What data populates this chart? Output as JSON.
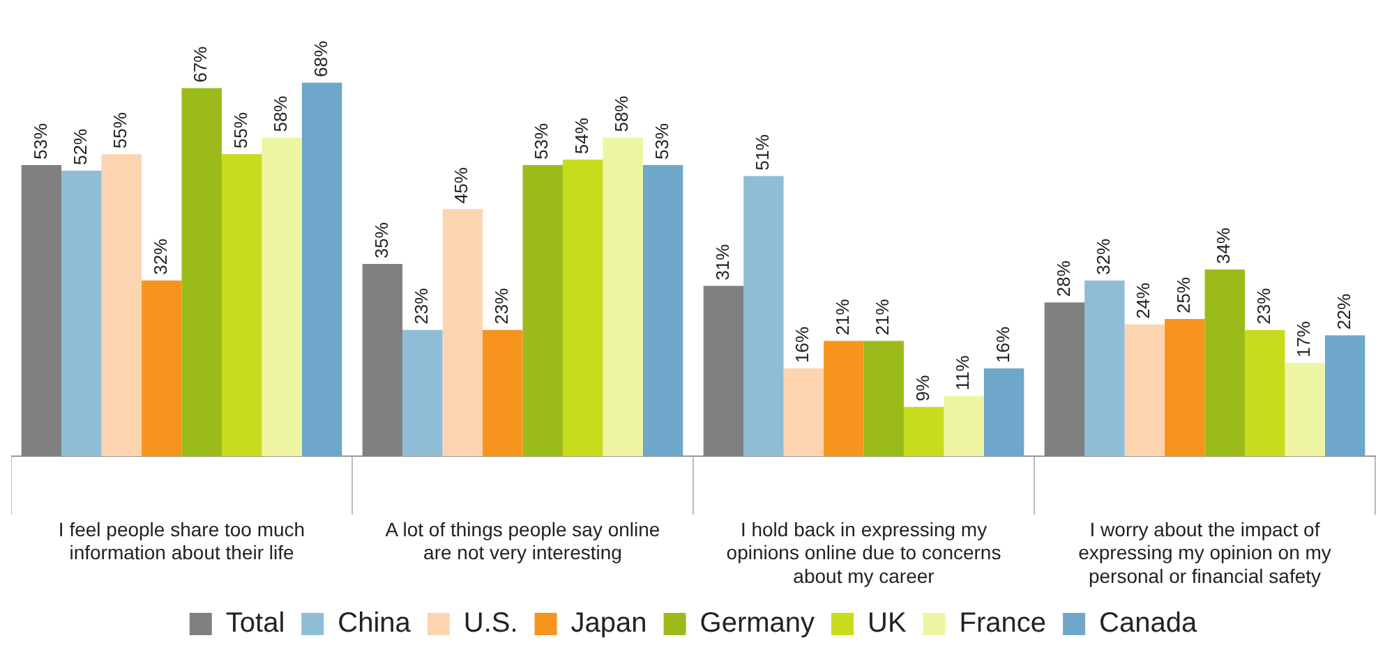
{
  "chart_data": {
    "type": "bar",
    "categories": [
      "I feel people share too much information about their life",
      "A lot of things people say online are not very interesting",
      "I hold back in expressing my opinions online due to concerns about my career",
      "I worry about the impact of expressing my opinion on my personal or financial safety"
    ],
    "series": [
      {
        "name": "Total",
        "color": "#808080",
        "values": [
          53,
          35,
          31,
          28
        ],
        "value_labels": [
          "53%",
          "35%",
          "31%",
          "28%"
        ]
      },
      {
        "name": "China",
        "color": "#8fbdd6",
        "values": [
          52,
          23,
          51,
          32
        ],
        "value_labels": [
          "52%",
          "23%",
          "51%",
          "32%"
        ]
      },
      {
        "name": "U.S.",
        "color": "#fcd5b0",
        "values": [
          55,
          45,
          16,
          24
        ],
        "value_labels": [
          "55%",
          "45%",
          "16%",
          "24%"
        ]
      },
      {
        "name": "Japan",
        "color": "#f7941e",
        "values": [
          32,
          23,
          21,
          25
        ],
        "value_labels": [
          "32%",
          "23%",
          "21%",
          "25%"
        ]
      },
      {
        "name": "Germany",
        "color": "#9bbb1a",
        "values": [
          67,
          53,
          21,
          34
        ],
        "value_labels": [
          "67%",
          "53%",
          "21%",
          "34%"
        ]
      },
      {
        "name": "UK",
        "color": "#c8dc1e",
        "values": [
          55,
          54,
          9,
          23
        ],
        "value_labels": [
          "55%",
          "54%",
          "9%",
          "23%"
        ]
      },
      {
        "name": "France",
        "color": "#eef5a2",
        "values": [
          58,
          58,
          11,
          17
        ],
        "value_labels": [
          "58%",
          "58%",
          "11%",
          "17%"
        ]
      },
      {
        "name": "Canada",
        "color": "#6ea7c9",
        "values": [
          68,
          53,
          16,
          22
        ],
        "value_labels": [
          "68%",
          "53%",
          "16%",
          "22%"
        ]
      }
    ],
    "grid": false,
    "legend": "bottom",
    "tick_labels": "x"
  }
}
